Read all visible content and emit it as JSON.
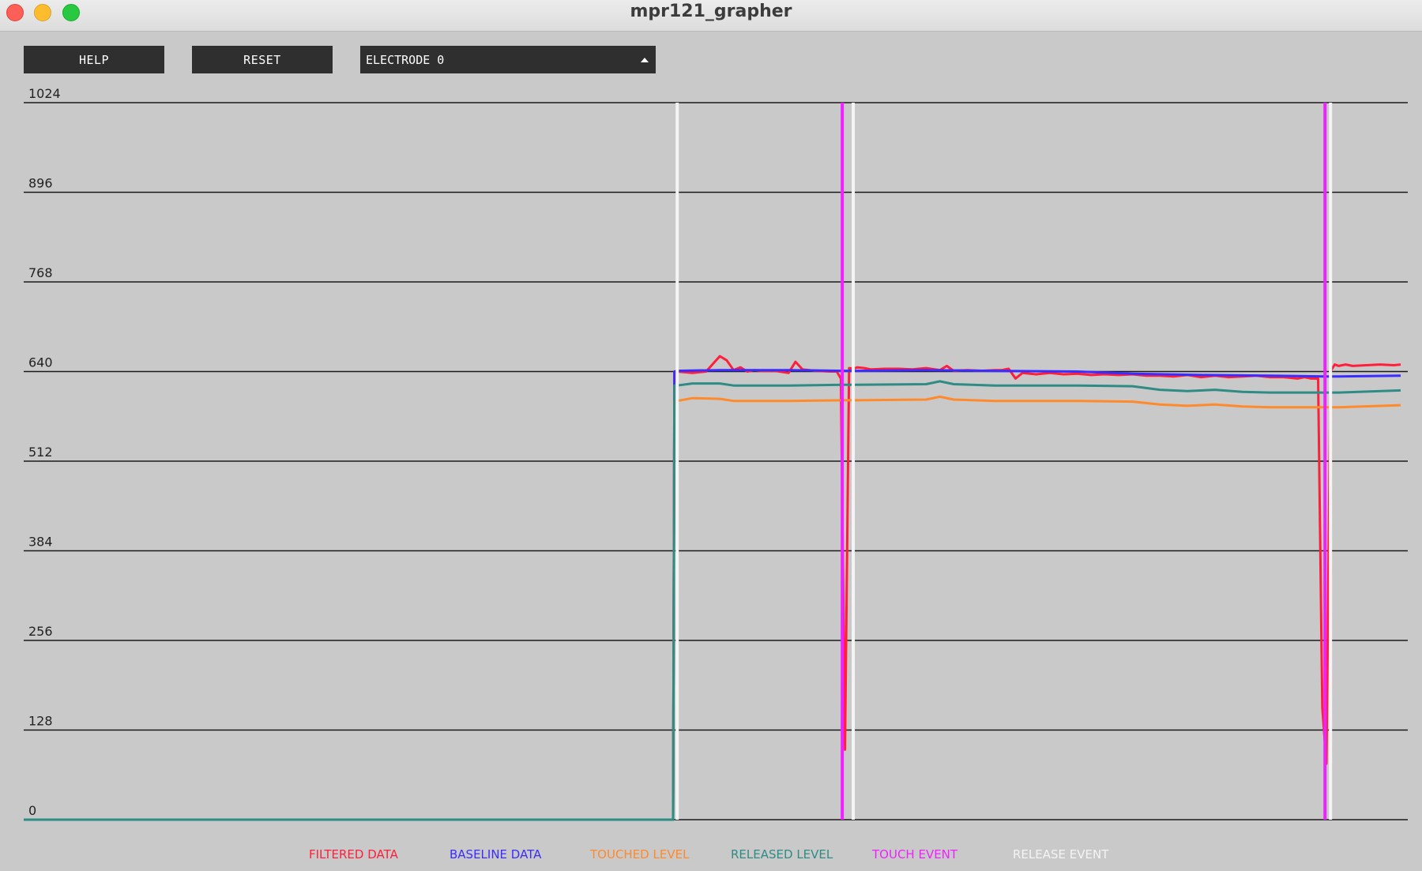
{
  "window": {
    "title": "mpr121_grapher"
  },
  "toolbar": {
    "help_label": "HELP",
    "reset_label": "RESET",
    "electrode_select": {
      "selected": "ELECTRODE 0"
    }
  },
  "chart_data": {
    "type": "line",
    "ylim": [
      0,
      1024
    ],
    "yticks": [
      0,
      128,
      256,
      384,
      512,
      640,
      768,
      896,
      1024
    ],
    "xlim": [
      0,
      1000
    ],
    "grid": true,
    "legend_position": "bottom",
    "series": [
      {
        "name": "FILTERED DATA",
        "color": "#ff1f3a",
        "x": [
          0,
          466,
          467,
          469,
          480,
          490,
          500,
          505,
          510,
          515,
          520,
          525,
          530,
          540,
          550,
          555,
          560,
          570,
          580,
          585,
          588,
          591,
          594,
          597,
          600,
          605,
          610,
          620,
          630,
          640,
          650,
          660,
          665,
          670,
          680,
          690,
          700,
          705,
          710,
          715,
          720,
          730,
          740,
          750,
          760,
          770,
          780,
          790,
          800,
          810,
          820,
          830,
          840,
          850,
          860,
          870,
          880,
          890,
          900,
          910,
          920,
          925,
          930,
          935,
          938,
          941,
          944,
          947,
          950,
          955,
          960,
          970,
          980,
          990,
          995
        ],
        "y": [
          0,
          0,
          640,
          640,
          638,
          640,
          662,
          656,
          642,
          646,
          640,
          642,
          641,
          641,
          638,
          654,
          643,
          641,
          640,
          640,
          630,
          100,
          645,
          644,
          646,
          645,
          643,
          644,
          644,
          643,
          645,
          642,
          648,
          641,
          642,
          641,
          642,
          642,
          644,
          630,
          638,
          636,
          638,
          636,
          637,
          635,
          636,
          635,
          636,
          634,
          634,
          633,
          635,
          632,
          634,
          632,
          633,
          634,
          632,
          632,
          630,
          632,
          630,
          630,
          160,
          80,
          640,
          650,
          648,
          650,
          648,
          649,
          650,
          649,
          650
        ]
      },
      {
        "name": "BASELINE DATA",
        "color": "#3b2cff",
        "x": [
          0,
          466,
          467,
          469,
          500,
          550,
          590,
          600,
          650,
          700,
          760,
          800,
          850,
          900,
          940,
          950,
          995
        ],
        "y": [
          0,
          0,
          640,
          641,
          642,
          642,
          641,
          641,
          642,
          641,
          640,
          637,
          635,
          634,
          633,
          633,
          634
        ]
      },
      {
        "name": "TOUCHED LEVEL",
        "color": "#ff8a2b",
        "x": [
          0,
          466,
          467,
          469,
          480,
          500,
          510,
          550,
          590,
          600,
          650,
          660,
          670,
          700,
          760,
          800,
          820,
          840,
          860,
          880,
          900,
          940,
          950,
          995
        ],
        "y": [
          0,
          0,
          598,
          598,
          602,
          601,
          598,
          598,
          599,
          599,
          600,
          604,
          600,
          598,
          598,
          597,
          593,
          591,
          593,
          590,
          589,
          589,
          589,
          592
        ]
      },
      {
        "name": "RELEASED LEVEL",
        "color": "#2f8c85",
        "x": [
          0,
          466,
          467,
          469,
          480,
          500,
          510,
          550,
          590,
          600,
          650,
          660,
          670,
          700,
          760,
          800,
          820,
          840,
          860,
          880,
          900,
          940,
          950,
          995
        ],
        "y": [
          0,
          0,
          620,
          620,
          623,
          623,
          620,
          620,
          621,
          621,
          622,
          626,
          622,
          620,
          620,
          619,
          614,
          612,
          614,
          611,
          610,
          610,
          610,
          613
        ]
      },
      {
        "name": "TOUCH EVENT",
        "color": "#ee22ff",
        "events_x": [
          589,
          940
        ]
      },
      {
        "name": "RELEASE EVENT",
        "color": "#f4f4f4",
        "events_x": [
          469,
          597,
          944
        ]
      }
    ]
  }
}
